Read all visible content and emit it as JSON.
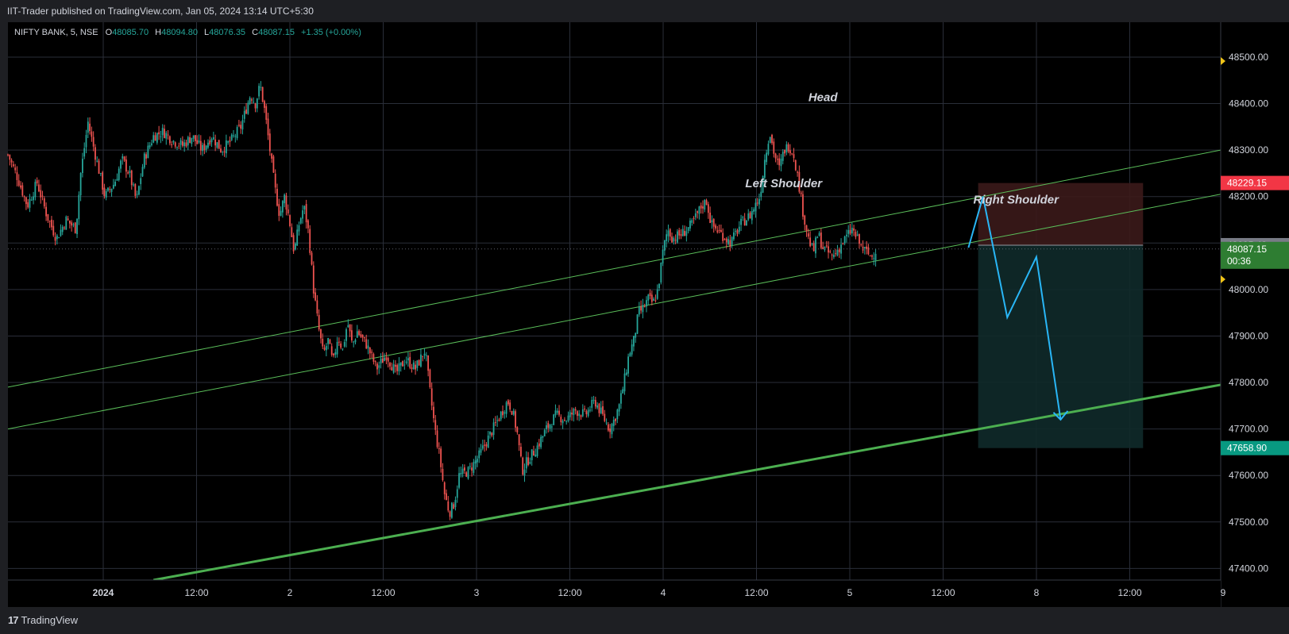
{
  "header": {
    "published_by": "IIT-Trader published on TradingView.com, Jan 05, 2024 13:14 UTC+5:30"
  },
  "legend": {
    "symbol": "NIFTY BANK, 5, NSE",
    "open_label": "O",
    "open": "48085.70",
    "high_label": "H",
    "high": "48094.80",
    "low_label": "L",
    "low": "48076.35",
    "close_label": "C",
    "close": "48087.15",
    "change": "+1.35 (+0.00%)"
  },
  "footer": {
    "brand": "TradingView",
    "logo_text": "17"
  },
  "chart_data": {
    "type": "candlestick",
    "symbol": "NIFTY BANK",
    "interval": "5",
    "exchange": "NSE",
    "y_ticks": [
      48500,
      48400,
      48300,
      48200,
      48100,
      48000,
      47900,
      47800,
      47700,
      47600,
      47500,
      47400
    ],
    "y_tick_labels": [
      "48500.00",
      "48400.00",
      "48300.00",
      "48200.00",
      "48100.00",
      "48000.00",
      "47900.00",
      "47800.00",
      "47700.00",
      "47600.00",
      "47500.00",
      "47400.00"
    ],
    "x_tick_labels": [
      "2024",
      "12:00",
      "2",
      "12:00",
      "3",
      "12:00",
      "4",
      "12:00",
      "5",
      "12:00",
      "8",
      "12:00",
      "9"
    ],
    "x_tick_bold": [
      true,
      false,
      false,
      false,
      false,
      false,
      false,
      false,
      false,
      false,
      false,
      false,
      false
    ],
    "ylim": [
      47375,
      48575
    ],
    "price_path": [
      [
        0,
        48290
      ],
      [
        4,
        48240
      ],
      [
        8,
        48180
      ],
      [
        12,
        48230
      ],
      [
        16,
        48160
      ],
      [
        20,
        48110
      ],
      [
        24,
        48150
      ],
      [
        28,
        48130
      ],
      [
        30,
        48250
      ],
      [
        33,
        48360
      ],
      [
        36,
        48290
      ],
      [
        40,
        48200
      ],
      [
        44,
        48230
      ],
      [
        47,
        48280
      ],
      [
        50,
        48250
      ],
      [
        53,
        48190
      ],
      [
        56,
        48280
      ],
      [
        60,
        48330
      ],
      [
        64,
        48340
      ],
      [
        68,
        48320
      ],
      [
        72,
        48310
      ],
      [
        76,
        48330
      ],
      [
        80,
        48300
      ],
      [
        84,
        48330
      ],
      [
        88,
        48300
      ],
      [
        92,
        48320
      ],
      [
        96,
        48350
      ],
      [
        100,
        48420
      ],
      [
        102,
        48400
      ],
      [
        104,
        48440
      ],
      [
        106,
        48380
      ],
      [
        108,
        48300
      ],
      [
        110,
        48220
      ],
      [
        112,
        48160
      ],
      [
        114,
        48200
      ],
      [
        116,
        48150
      ],
      [
        118,
        48080
      ],
      [
        120,
        48140
      ],
      [
        122,
        48180
      ],
      [
        124,
        48120
      ],
      [
        126,
        48000
      ],
      [
        128,
        47920
      ],
      [
        130,
        47860
      ],
      [
        132,
        47890
      ],
      [
        134,
        47840
      ],
      [
        136,
        47900
      ],
      [
        138,
        47870
      ],
      [
        140,
        47930
      ],
      [
        142,
        47880
      ],
      [
        144,
        47910
      ],
      [
        148,
        47880
      ],
      [
        152,
        47830
      ],
      [
        156,
        47860
      ],
      [
        160,
        47820
      ],
      [
        164,
        47850
      ],
      [
        168,
        47830
      ],
      [
        170,
        47850
      ],
      [
        172,
        47870
      ],
      [
        174,
        47780
      ],
      [
        176,
        47700
      ],
      [
        178,
        47640
      ],
      [
        180,
        47560
      ],
      [
        182,
        47520
      ],
      [
        184,
        47540
      ],
      [
        186,
        47600
      ],
      [
        190,
        47610
      ],
      [
        194,
        47640
      ],
      [
        198,
        47680
      ],
      [
        202,
        47720
      ],
      [
        206,
        47760
      ],
      [
        208,
        47740
      ],
      [
        210,
        47690
      ],
      [
        212,
        47610
      ],
      [
        214,
        47630
      ],
      [
        218,
        47660
      ],
      [
        222,
        47700
      ],
      [
        226,
        47730
      ],
      [
        230,
        47720
      ],
      [
        234,
        47740
      ],
      [
        238,
        47730
      ],
      [
        242,
        47760
      ],
      [
        246,
        47720
      ],
      [
        248,
        47700
      ],
      [
        250,
        47720
      ],
      [
        252,
        47750
      ],
      [
        254,
        47800
      ],
      [
        256,
        47860
      ],
      [
        258,
        47890
      ],
      [
        260,
        47950
      ],
      [
        262,
        47960
      ],
      [
        264,
        47980
      ],
      [
        266,
        47970
      ],
      [
        268,
        48000
      ],
      [
        270,
        48080
      ],
      [
        272,
        48130
      ],
      [
        274,
        48110
      ],
      [
        278,
        48120
      ],
      [
        282,
        48140
      ],
      [
        286,
        48180
      ],
      [
        288,
        48190
      ],
      [
        290,
        48140
      ],
      [
        294,
        48120
      ],
      [
        298,
        48100
      ],
      [
        302,
        48140
      ],
      [
        306,
        48160
      ],
      [
        310,
        48200
      ],
      [
        312,
        48280
      ],
      [
        314,
        48340
      ],
      [
        316,
        48290
      ],
      [
        318,
        48260
      ],
      [
        320,
        48300
      ],
      [
        322,
        48310
      ],
      [
        324,
        48290
      ],
      [
        326,
        48230
      ],
      [
        328,
        48160
      ],
      [
        330,
        48110
      ],
      [
        332,
        48080
      ],
      [
        334,
        48120
      ],
      [
        336,
        48090
      ],
      [
        340,
        48070
      ],
      [
        344,
        48100
      ],
      [
        348,
        48130
      ],
      [
        352,
        48090
      ],
      [
        356,
        48070
      ],
      [
        358,
        48087
      ]
    ],
    "x_total": 500,
    "series_end_index": 358,
    "channel_upper": {
      "start": [
        0,
        47790
      ],
      "end": [
        500,
        48300
      ]
    },
    "channel_lower": {
      "start": [
        0,
        47700
      ],
      "end": [
        500,
        48205
      ]
    },
    "support_line": {
      "start": [
        60,
        47375
      ],
      "end": [
        500,
        47795
      ]
    },
    "annotations": [
      {
        "text": "Head",
        "at": [
          330,
          48405
        ]
      },
      {
        "text": "Left Shoulder",
        "at": [
          304,
          48220
        ]
      },
      {
        "text": "Right Shoulder",
        "at": [
          398,
          48185
        ]
      }
    ],
    "projection_path": [
      [
        396,
        48090
      ],
      [
        402,
        48200
      ],
      [
        412,
        47940
      ],
      [
        424,
        48070
      ],
      [
        434,
        47720
      ]
    ],
    "position_tool": {
      "x_start": 400,
      "x_end": 468,
      "stop": 48229.15,
      "entry": 48095.4,
      "target": 47658.9,
      "stop_label": "48229.15",
      "entry_label": "48095.40",
      "target_label": "47658.90"
    },
    "last_price": {
      "value": 48087.15,
      "label": "48087.15",
      "countdown": "00:36"
    },
    "colors": {
      "up": "#26a69a",
      "down": "#ef5350",
      "grid": "#2a2e39",
      "channel": "#5bbf5a",
      "support": "#4caf50",
      "projection": "#29b6f6",
      "stop_zone": "#3b1a1a",
      "target_zone": "#0f2a2a"
    }
  }
}
